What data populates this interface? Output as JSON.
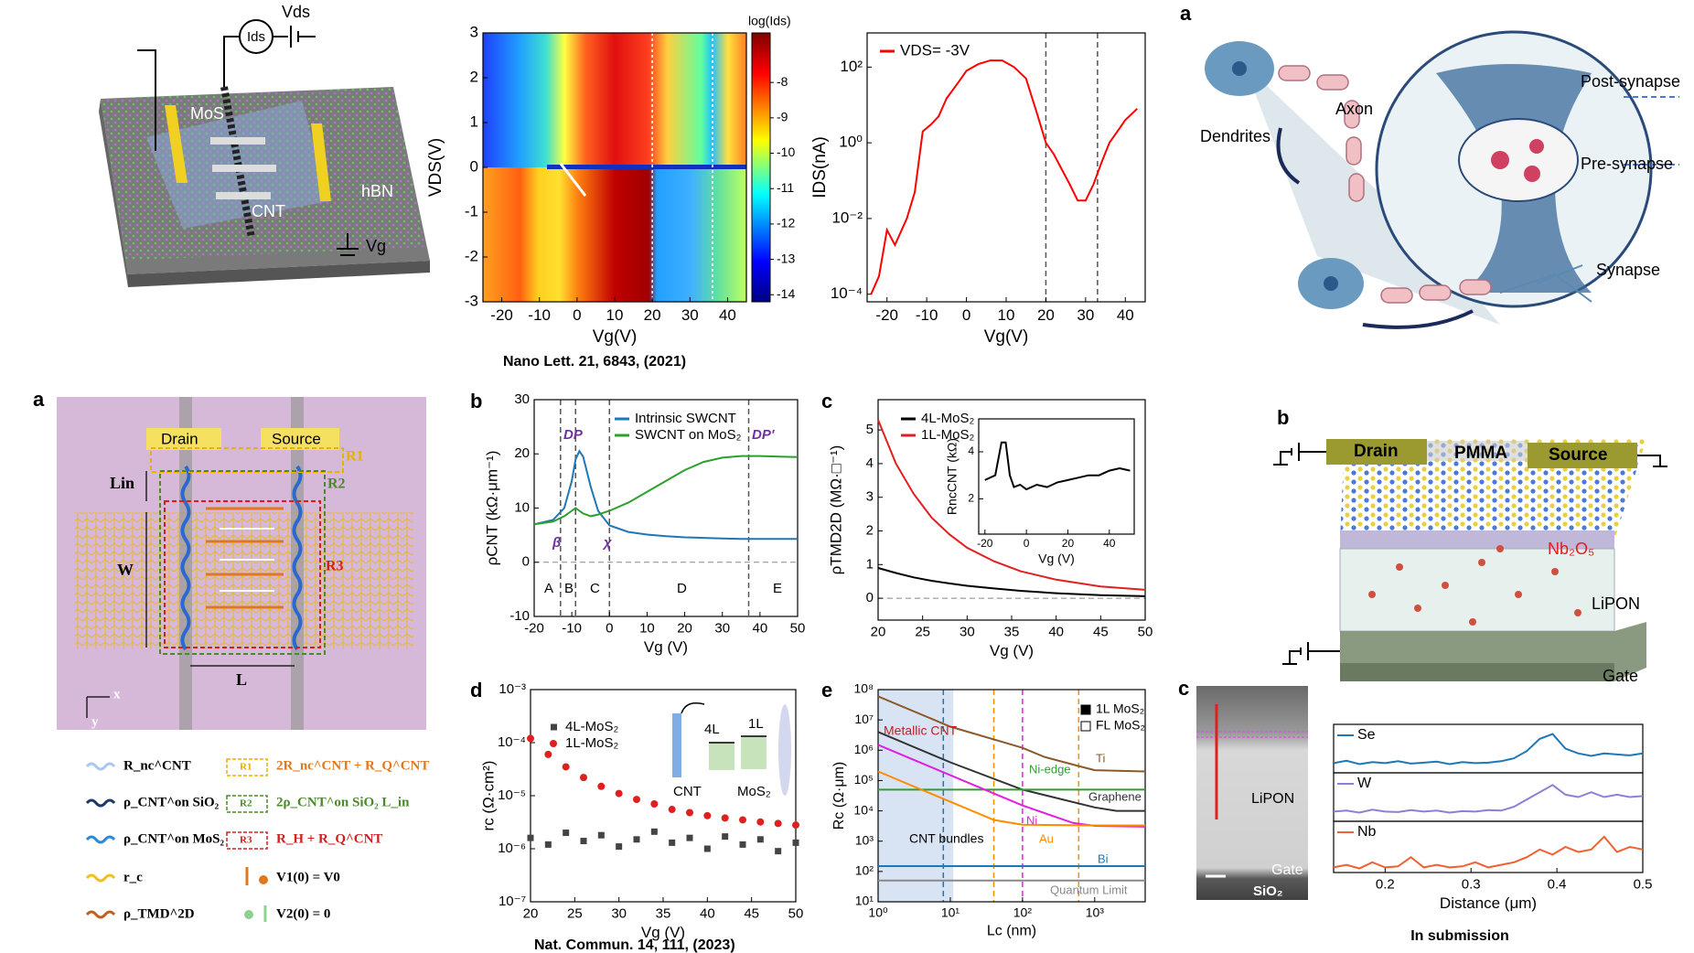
{
  "figure": {
    "device1": [
      "MoS",
      "CNT",
      "hBN",
      "Ids",
      "Vds",
      "Vg"
    ],
    "neuron": {
      "label": "a",
      "texts": [
        "Dendrites",
        "Axon",
        "Post-synapse",
        "Pre-synapse",
        "Synapse"
      ]
    },
    "schematic": {
      "label": "a",
      "texts": [
        "Drain",
        "Source",
        "Lin",
        "W",
        "L",
        "R1",
        "R2",
        "R3",
        "x",
        "y"
      ],
      "legend": [
        "R_nc^CNT",
        "ρ_CNT^on SiO₂",
        "ρ_CNT^on MoS₂",
        "r_c",
        "ρ_TMD^2D",
        "R1",
        "R2",
        "R3",
        "2R_nc^CNT + R_Q^CNT",
        "2ρ_CNT^on SiO₂ L_in",
        "R_H + R_Q^CNT",
        "V1(0) = V0",
        "V2(0) = 0"
      ]
    },
    "device2": {
      "label": "b",
      "texts": [
        "Drain",
        "PMMA",
        "Source",
        "Nb₂O₅",
        "LiPON",
        "Gate"
      ]
    },
    "tem": {
      "label": "c",
      "texts": [
        "LiPON",
        "Gate",
        "SiO₂"
      ]
    },
    "captions": [
      "Nano Lett. 21, 6843, (2021)",
      "Nat. Commun. 14, 111, (2023)",
      "In submission"
    ]
  },
  "chart_data": [
    {
      "type": "heatmap",
      "xlabel": "Vg(V)",
      "ylabel": "VDS(V)",
      "xlim": [
        -25,
        45
      ],
      "xticks": [
        -20,
        -10,
        0,
        10,
        20,
        30,
        40
      ],
      "ylim": [
        -3,
        3
      ],
      "yticks": [
        -3,
        -2,
        -1,
        0,
        1,
        2,
        3
      ],
      "vlines": [
        20,
        36
      ],
      "colorbar": {
        "title": "log(Ids)",
        "lim": [
          -6.6,
          -14.2
        ],
        "ticks": [
          -8,
          -9,
          -10,
          -11,
          -12,
          -13,
          -14
        ]
      }
    },
    {
      "type": "line",
      "xlabel": "Vg(V)",
      "ylabel": "IDS(nA)",
      "log_y": true,
      "xlim": [
        -25,
        45
      ],
      "xticks": [
        -20,
        -10,
        0,
        10,
        20,
        30,
        40
      ],
      "ylim": [
        6.3e-05,
        800
      ],
      "yticks": [
        {
          "value": 0.0001,
          "label": "10⁻⁴"
        },
        {
          "value": 0.01,
          "label": "10⁻²"
        },
        {
          "value": 1,
          "label": "10⁰"
        },
        {
          "value": 100,
          "label": "10²"
        }
      ],
      "vlines": [
        20,
        33
      ],
      "x": [
        -24,
        -22,
        -20,
        -18,
        -15,
        -13,
        -11,
        -9,
        -7,
        -5,
        -2,
        0,
        3,
        6,
        9,
        12,
        15,
        18,
        20,
        22,
        24,
        26,
        28,
        30,
        32,
        34,
        36,
        38,
        40,
        43
      ],
      "series": [
        {
          "name": "VDS= -3V",
          "color": "#ff0000",
          "values": [
            0.0001,
            0.0003,
            0.005,
            0.002,
            0.01,
            0.05,
            2,
            3,
            5,
            15,
            40,
            80,
            120,
            150,
            150,
            100,
            50,
            5,
            1,
            0.5,
            0.2,
            0.08,
            0.03,
            0.03,
            0.08,
            0.3,
            1,
            2,
            4,
            8
          ]
        }
      ]
    },
    {
      "type": "line",
      "panel_label": "b",
      "xlabel": "Vg (V)",
      "ylabel": "ρCNT (kΩ·μm⁻¹)",
      "xlim": [
        -20,
        50
      ],
      "xticks": [
        -20,
        -10,
        0,
        10,
        20,
        30,
        40,
        50
      ],
      "ylim": [
        -10,
        30
      ],
      "yticks": [
        -10,
        0,
        10,
        20,
        30
      ],
      "vlines": [
        -13,
        -9,
        0,
        37
      ],
      "hlines": [
        0
      ],
      "x": [
        -20,
        -15,
        -12,
        -10,
        -9,
        -8,
        -7,
        -5,
        -3,
        0,
        5,
        10,
        15,
        20,
        25,
        30,
        35,
        40,
        45,
        50
      ],
      "series": [
        {
          "name": "Intrinsic SWCNT",
          "color": "#1f77b4",
          "values": [
            7,
            7.8,
            10,
            15,
            19,
            20.5,
            19.5,
            14,
            9.5,
            6.8,
            5.6,
            5.1,
            4.8,
            4.6,
            4.5,
            4.4,
            4.3,
            4.3,
            4.3,
            4.3
          ]
        },
        {
          "name": "SWCNT on MoS₂",
          "color": "#2ca02c",
          "values": [
            7,
            7.5,
            8.5,
            9.5,
            10,
            9.5,
            9,
            8.5,
            8.8,
            9.5,
            11,
            13,
            15,
            17,
            18.5,
            19.3,
            19.6,
            19.6,
            19.5,
            19.4
          ]
        }
      ],
      "annotations": [
        "DP",
        "DP'",
        "β",
        "χ",
        "A",
        "B",
        "C",
        "D",
        "E"
      ]
    },
    {
      "type": "line",
      "panel_label": "c",
      "xlabel": "Vg (V)",
      "ylabel": "ρTMD2D (MΩ·□⁻¹)",
      "xlim": [
        20,
        50
      ],
      "xticks": [
        20,
        25,
        30,
        35,
        40,
        45,
        50
      ],
      "ylim": [
        -0.65,
        5.9
      ],
      "yticks": [
        0,
        1,
        2,
        3,
        4,
        5
      ],
      "hlines": [
        0
      ],
      "x": [
        20,
        22,
        24,
        26,
        28,
        30,
        33,
        36,
        40,
        45,
        50
      ],
      "series": [
        {
          "name": "4L-MoS₂",
          "color": "#000000",
          "values": [
            0.9,
            0.75,
            0.62,
            0.52,
            0.44,
            0.37,
            0.29,
            0.22,
            0.15,
            0.09,
            0.06
          ]
        },
        {
          "name": "1L-MoS₂",
          "color": "#e02020",
          "values": [
            5.3,
            4.0,
            3.1,
            2.4,
            1.9,
            1.5,
            1.1,
            0.8,
            0.55,
            0.35,
            0.25
          ]
        }
      ]
    },
    {
      "type": "line",
      "xlabel": "Vg (V)",
      "ylabel": "RncCNT (kΩ)",
      "xlim": [
        -23,
        52
      ],
      "xticks": [
        -20,
        0,
        20,
        40
      ],
      "ylim": [
        0.5,
        5.4
      ],
      "yticks": [
        2,
        4
      ],
      "x": [
        -20,
        -15,
        -12,
        -10,
        -8,
        -6,
        -3,
        0,
        5,
        10,
        15,
        20,
        25,
        30,
        35,
        40,
        45,
        50
      ],
      "series": [
        {
          "color": "#000000",
          "values": [
            2.8,
            3.0,
            4.4,
            4.4,
            3.0,
            2.5,
            2.6,
            2.4,
            2.6,
            2.5,
            2.7,
            2.8,
            2.9,
            3.0,
            3.0,
            3.2,
            3.3,
            3.2
          ]
        }
      ]
    },
    {
      "type": "scatter",
      "panel_label": "d",
      "xlabel": "Vg (V)",
      "ylabel": "rc (Ω·cm²)",
      "log_y": true,
      "xlim": [
        20,
        50
      ],
      "xticks": [
        20,
        25,
        30,
        35,
        40,
        45,
        50
      ],
      "ylim": [
        1e-07,
        0.001
      ],
      "yticks": [
        {
          "value": 1e-07,
          "label": "10⁻⁷"
        },
        {
          "value": 1e-06,
          "label": "10⁻⁶"
        },
        {
          "value": 1e-05,
          "label": "10⁻⁵"
        },
        {
          "value": 0.0001,
          "label": "10⁻⁴"
        },
        {
          "value": 0.001,
          "label": "10⁻³"
        }
      ],
      "x": [
        20,
        22,
        24,
        26,
        28,
        30,
        32,
        34,
        36,
        38,
        40,
        42,
        44,
        46,
        48,
        50
      ],
      "series": [
        {
          "name": "4L-MoS₂",
          "color": "#444444",
          "marker": "square",
          "values": [
            1.6e-06,
            1.2e-06,
            2e-06,
            1.4e-06,
            1.8e-06,
            1.1e-06,
            1.5e-06,
            2.1e-06,
            1.3e-06,
            1.6e-06,
            1e-06,
            1.7e-06,
            1.2e-06,
            1.5e-06,
            9e-07,
            1.3e-06
          ]
        },
        {
          "name": "1L-MoS₂",
          "color": "#e02020",
          "marker": "circle",
          "values": [
            0.00012,
            6e-05,
            3.5e-05,
            2.2e-05,
            1.5e-05,
            1.1e-05,
            8.5e-06,
            7e-06,
            5.5e-06,
            4.8e-06,
            4.2e-06,
            3.8e-06,
            3.5e-06,
            3.2e-06,
            3e-06,
            2.8e-06
          ]
        }
      ],
      "annotations": [
        "4L",
        "1L",
        "CNT",
        "MoS₂"
      ]
    },
    {
      "type": "line",
      "panel_label": "e",
      "xlabel": "Lc (nm)",
      "ylabel": "Rc (Ω·μm)",
      "log_x": true,
      "log_y": true,
      "xlim": [
        1,
        5000
      ],
      "xticks": [
        {
          "value": 1,
          "label": "10⁰"
        },
        {
          "value": 10,
          "label": "10¹"
        },
        {
          "value": 100,
          "label": "10²"
        },
        {
          "value": 1000,
          "label": "10³"
        }
      ],
      "ylim": [
        10,
        100000000
      ],
      "yticks": [
        {
          "value": 10,
          "label": "10¹"
        },
        {
          "value": 100,
          "label": "10²"
        },
        {
          "value": 1000,
          "label": "10³"
        },
        {
          "value": 10000,
          "label": "10⁴"
        },
        {
          "value": 100000,
          "label": "10⁵"
        },
        {
          "value": 1000000,
          "label": "10⁶"
        },
        {
          "value": 10000000,
          "label": "10⁷"
        },
        {
          "value": 100000000,
          "label": "10⁸"
        }
      ],
      "vlines": [
        8,
        40,
        100,
        600
      ],
      "vline_colors": [
        "#1f77b4",
        "#ff8c00",
        "#e020e0",
        "#ff8c00"
      ],
      "shade": [
        1,
        11
      ],
      "series": [
        {
          "name": "Ti",
          "color": "#8b5a2b",
          "x": [
            1,
            10,
            100,
            200,
            600,
            1000,
            5000
          ],
          "values": [
            60000000,
            6000000,
            1200000,
            600000,
            300000,
            220000,
            200000
          ]
        },
        {
          "name": "Graphene",
          "color": "#333333",
          "x": [
            1,
            10,
            100,
            1000,
            2000,
            5000
          ],
          "values": [
            4000000,
            400000,
            50000,
            13000,
            10000,
            10000
          ]
        },
        {
          "name": "Ni-edge",
          "color": "#2ca02c",
          "x": [
            1,
            10,
            100,
            1000,
            5000
          ],
          "values": [
            50000,
            50000,
            50000,
            50000,
            50000
          ]
        },
        {
          "name": "Ni",
          "color": "#e020e0",
          "x": [
            1,
            10,
            100,
            500,
            1000,
            5000
          ],
          "values": [
            1500000,
            150000,
            15000,
            4000,
            3200,
            3000
          ]
        },
        {
          "name": "Au",
          "color": "#ff8c00",
          "x": [
            1,
            10,
            40,
            100,
            1000,
            5000
          ],
          "values": [
            200000,
            20000,
            5000,
            3500,
            3300,
            3300
          ]
        },
        {
          "name": "Bi",
          "color": "#1f77b4",
          "x": [
            1,
            5000
          ],
          "values": [
            150,
            150
          ]
        },
        {
          "name": "Quantum Limit",
          "color": "#888888",
          "x": [
            1,
            5000
          ],
          "values": [
            50,
            50
          ]
        }
      ],
      "annotations": [
        "Metallic CNT",
        "CNT bundles"
      ],
      "legend_entries": [
        "1L MoS₂",
        "FL MoS₂"
      ]
    },
    {
      "type": "line",
      "xlim": [
        0.14,
        0.5
      ],
      "ylim": [
        0,
        1
      ],
      "x": [
        0.14,
        0.155,
        0.17,
        0.185,
        0.2,
        0.215,
        0.23,
        0.245,
        0.26,
        0.275,
        0.29,
        0.305,
        0.32,
        0.335,
        0.35,
        0.365,
        0.38,
        0.395,
        0.41,
        0.425,
        0.44,
        0.455,
        0.47,
        0.485,
        0.5
      ],
      "series": [
        {
          "name": "Se",
          "color": "#1f77b4",
          "values": [
            0.2,
            0.25,
            0.18,
            0.22,
            0.2,
            0.24,
            0.19,
            0.21,
            0.23,
            0.18,
            0.22,
            0.2,
            0.21,
            0.24,
            0.3,
            0.45,
            0.7,
            0.8,
            0.5,
            0.4,
            0.35,
            0.4,
            0.38,
            0.36,
            0.4
          ]
        }
      ]
    },
    {
      "type": "line",
      "xlim": [
        0.14,
        0.5
      ],
      "ylim": [
        0,
        1
      ],
      "x": [
        0.14,
        0.155,
        0.17,
        0.185,
        0.2,
        0.215,
        0.23,
        0.245,
        0.26,
        0.275,
        0.29,
        0.305,
        0.32,
        0.335,
        0.35,
        0.365,
        0.38,
        0.395,
        0.41,
        0.425,
        0.44,
        0.455,
        0.47,
        0.485,
        0.5
      ],
      "series": [
        {
          "name": "W",
          "color": "#8c7fd6",
          "values": [
            0.2,
            0.22,
            0.18,
            0.24,
            0.2,
            0.19,
            0.23,
            0.2,
            0.22,
            0.18,
            0.21,
            0.2,
            0.23,
            0.22,
            0.3,
            0.45,
            0.6,
            0.75,
            0.55,
            0.5,
            0.6,
            0.5,
            0.55,
            0.5,
            0.52
          ]
        }
      ]
    },
    {
      "type": "line",
      "xlabel": "Distance (μm)",
      "xlim": [
        0.14,
        0.5
      ],
      "xticks": [
        0.2,
        0.3,
        0.4,
        0.5
      ],
      "ylim": [
        0,
        1
      ],
      "x": [
        0.14,
        0.155,
        0.17,
        0.185,
        0.2,
        0.215,
        0.23,
        0.245,
        0.26,
        0.275,
        0.29,
        0.305,
        0.32,
        0.335,
        0.35,
        0.365,
        0.38,
        0.395,
        0.41,
        0.425,
        0.44,
        0.455,
        0.47,
        0.485,
        0.5
      ],
      "series": [
        {
          "name": "Nb",
          "color": "#f06030",
          "values": [
            0.1,
            0.15,
            0.08,
            0.2,
            0.1,
            0.12,
            0.3,
            0.1,
            0.15,
            0.1,
            0.12,
            0.2,
            0.1,
            0.15,
            0.2,
            0.3,
            0.45,
            0.35,
            0.5,
            0.4,
            0.45,
            0.7,
            0.4,
            0.5,
            0.45
          ]
        }
      ]
    }
  ]
}
